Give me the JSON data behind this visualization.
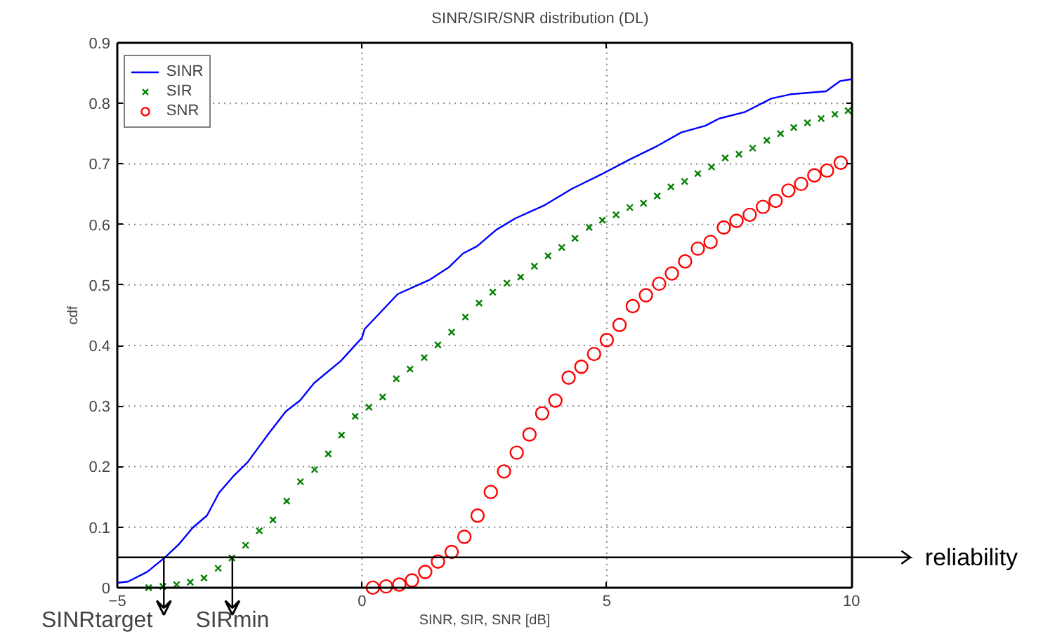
{
  "chart_data": {
    "type": "line",
    "title": "SINR/SIR/SNR distribution (DL)",
    "xlabel": "SINR, SIR, SNR [dB]",
    "ylabel": "cdf",
    "xlim": [
      -5,
      10
    ],
    "xticks": [
      {
        "value": -5,
        "label": "−5"
      },
      0,
      5,
      10
    ],
    "ylim": [
      0,
      0.9
    ],
    "yticks": [
      0,
      0.1,
      0.2,
      0.3,
      0.4,
      0.5,
      0.6,
      0.7,
      0.8,
      0.9
    ],
    "grid": true,
    "legend": "top left",
    "series": [
      {
        "name": "SINR",
        "marker": "none",
        "line_style": "solid",
        "color": "#0000ff",
        "x": [
          -5,
          -4.78,
          -4.39,
          -4.04,
          -3.75,
          -3.46,
          -3.17,
          -2.92,
          -2.63,
          -2.34,
          -1.95,
          -1.56,
          -1.27,
          -0.98,
          -0.44,
          0,
          0.05,
          0.73,
          1.39,
          1.77,
          2.06,
          2.35,
          2.74,
          3.13,
          3.71,
          4.29,
          4.87,
          5.46,
          6.04,
          6.52,
          7.01,
          7.3,
          7.83,
          8.36,
          8.75,
          9.48,
          9.77,
          10
        ],
        "values": [
          0.008,
          0.01,
          0.026,
          0.049,
          0.071,
          0.099,
          0.119,
          0.157,
          0.184,
          0.207,
          0.25,
          0.291,
          0.309,
          0.338,
          0.374,
          0.413,
          0.427,
          0.485,
          0.509,
          0.529,
          0.552,
          0.564,
          0.591,
          0.61,
          0.631,
          0.659,
          0.682,
          0.707,
          0.73,
          0.752,
          0.763,
          0.775,
          0.786,
          0.808,
          0.815,
          0.82,
          0.837,
          0.84
        ]
      },
      {
        "name": "SIR",
        "type": "scatter",
        "marker": "cross",
        "color": "#008000",
        "x": [
          -4.36,
          -4.07,
          -3.79,
          -3.51,
          -3.23,
          -2.94,
          -2.66,
          -2.38,
          -2.1,
          -1.82,
          -1.54,
          -1.26,
          -0.97,
          -0.69,
          -0.42,
          -0.14,
          0.14,
          0.42,
          0.7,
          0.98,
          1.27,
          1.55,
          1.83,
          2.11,
          2.39,
          2.67,
          2.96,
          3.24,
          3.52,
          3.8,
          4.08,
          4.35,
          4.64,
          4.91,
          5.19,
          5.47,
          5.75,
          6.03,
          6.31,
          6.59,
          6.86,
          7.14,
          7.42,
          7.7,
          7.98,
          8.27,
          8.55,
          8.82,
          9.1,
          9.38,
          9.66,
          9.93
        ],
        "values": [
          0,
          0.002,
          0.005,
          0.009,
          0.016,
          0.032,
          0.049,
          0.07,
          0.094,
          0.112,
          0.143,
          0.175,
          0.195,
          0.221,
          0.252,
          0.283,
          0.298,
          0.315,
          0.345,
          0.361,
          0.38,
          0.401,
          0.422,
          0.447,
          0.47,
          0.488,
          0.503,
          0.513,
          0.531,
          0.548,
          0.562,
          0.577,
          0.595,
          0.607,
          0.616,
          0.628,
          0.635,
          0.647,
          0.662,
          0.671,
          0.684,
          0.695,
          0.71,
          0.716,
          0.726,
          0.739,
          0.75,
          0.76,
          0.768,
          0.775,
          0.782,
          0.788
        ]
      },
      {
        "name": "SNR",
        "type": "scatter",
        "marker": "circle",
        "color": "#ff0000",
        "x": [
          0.22,
          0.49,
          0.76,
          1.02,
          1.29,
          1.55,
          1.83,
          2.09,
          2.36,
          2.63,
          2.9,
          3.16,
          3.42,
          3.68,
          3.95,
          4.22,
          4.48,
          4.74,
          5.0,
          5.26,
          5.53,
          5.8,
          6.07,
          6.33,
          6.6,
          6.86,
          7.12,
          7.39,
          7.65,
          7.92,
          8.19,
          8.45,
          8.71,
          8.97,
          9.24,
          9.5,
          9.78
        ],
        "values": [
          0,
          0.002,
          0.005,
          0.012,
          0.026,
          0.043,
          0.059,
          0.084,
          0.119,
          0.158,
          0.192,
          0.223,
          0.253,
          0.288,
          0.309,
          0.347,
          0.365,
          0.386,
          0.409,
          0.434,
          0.465,
          0.483,
          0.502,
          0.519,
          0.539,
          0.56,
          0.571,
          0.595,
          0.606,
          0.616,
          0.629,
          0.639,
          0.656,
          0.667,
          0.681,
          0.689,
          0.702
        ]
      }
    ],
    "ref_lines": [
      {
        "axis": "y",
        "value": 0.05,
        "label": "reliability",
        "color": "#000000"
      }
    ],
    "annotations": [
      {
        "text": "SINRtarget",
        "x": -4.05,
        "y": 0.05
      },
      {
        "text": "SIRmin",
        "x": -2.65,
        "y": 0.05
      }
    ]
  }
}
